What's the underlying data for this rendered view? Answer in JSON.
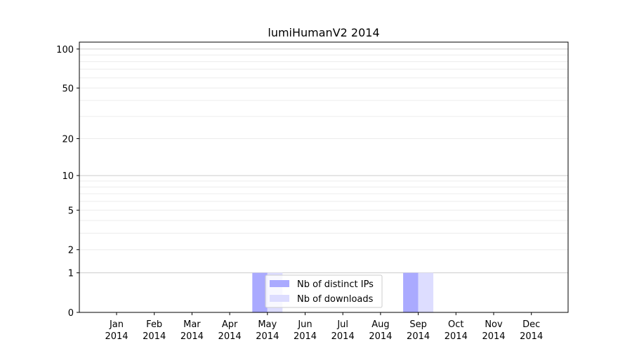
{
  "chart_data": {
    "type": "bar",
    "title": "lumiHumanV2 2014",
    "xlabel": "",
    "ylabel": "",
    "yscale": "log(y+1)",
    "ylim": [
      0,
      113
    ],
    "yticks": [
      0,
      1,
      2,
      5,
      10,
      20,
      50,
      100
    ],
    "categories": [
      "Jan\n2014",
      "Feb\n2014",
      "Mar\n2014",
      "Apr\n2014",
      "May\n2014",
      "Jun\n2014",
      "Jul\n2014",
      "Aug\n2014",
      "Sep\n2014",
      "Oct\n2014",
      "Nov\n2014",
      "Dec\n2014"
    ],
    "series": [
      {
        "name": "Nb of distinct IPs",
        "color": "#aaaaff",
        "values": [
          0,
          0,
          0,
          0,
          1,
          0,
          0,
          0,
          1,
          0,
          0,
          0
        ]
      },
      {
        "name": "Nb of downloads",
        "color": "#ddddff",
        "values": [
          0,
          0,
          0,
          0,
          1,
          0,
          0,
          0,
          1,
          0,
          0,
          0
        ]
      }
    ],
    "grid": "horizontal major and minor",
    "legend": "lower center"
  }
}
